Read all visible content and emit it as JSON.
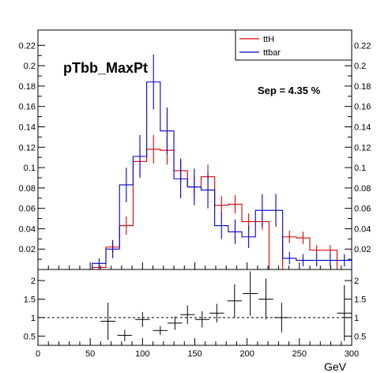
{
  "chart_data": [
    {
      "type": "histogram",
      "title": "pTbb_MaxPt",
      "annotation": "Sep = 4.35 %",
      "xlim": [
        0,
        300
      ],
      "ylim": [
        0,
        0.235
      ],
      "bin_edges": [
        0,
        13,
        26,
        39,
        52,
        65,
        78,
        91,
        104,
        117,
        130,
        143,
        156,
        169,
        182,
        195,
        208,
        221,
        234,
        247,
        260,
        273,
        286,
        300
      ],
      "y_ticks": [
        "0.02",
        "0.04",
        "0.06",
        "0.08",
        "0.1",
        "0.12",
        "0.14",
        "0.16",
        "0.18",
        "0.2",
        "0.22"
      ],
      "legend": {
        "placement": "top-right",
        "entries": [
          "ttH",
          "ttbar"
        ]
      },
      "series": [
        {
          "name": "ttH",
          "color": "#dd0000",
          "values": [
            0,
            0,
            0,
            0,
            0.002,
            0.022,
            0.043,
            0.106,
            0.118,
            0.117,
            0.097,
            0.081,
            0.091,
            0.063,
            0.064,
            0.047,
            0.047,
            0,
            0.032,
            0.031,
            0.019,
            0.019,
            0
          ],
          "errors": [
            0,
            0,
            0,
            0,
            0.003,
            0.006,
            0.009,
            0.013,
            0.014,
            0.014,
            0.012,
            0.011,
            0.012,
            0.009,
            0.009,
            0.008,
            0.008,
            0,
            0.006,
            0.006,
            0.005,
            0.005,
            0
          ]
        },
        {
          "name": "ttbar",
          "color": "#0000cc",
          "values": [
            0,
            0,
            0,
            0,
            0.006,
            0.02,
            0.083,
            0.111,
            0.184,
            0.136,
            0.089,
            0.081,
            0.078,
            0.043,
            0.037,
            0.032,
            0.058,
            0.058,
            0.011,
            0.009,
            0.009,
            0.009,
            0.009
          ],
          "errors": [
            0,
            0,
            0,
            0,
            0.005,
            0.009,
            0.017,
            0.021,
            0.027,
            0.023,
            0.019,
            0.018,
            0.018,
            0.013,
            0.012,
            0.011,
            0.016,
            0.016,
            0.006,
            0.006,
            0.006,
            0.006,
            0.006
          ]
        }
      ]
    },
    {
      "type": "ratio",
      "xlabel": "GeV",
      "xlim": [
        0,
        300
      ],
      "ylim": [
        0.25,
        2.3
      ],
      "x_ticks": [
        "0",
        "50",
        "100",
        "150",
        "200",
        "250",
        "300"
      ],
      "y_ticks": [
        "0.5",
        "1",
        "1.5",
        "2"
      ],
      "reference_line": 1,
      "points": [
        {
          "x": 67,
          "y": 0.9,
          "xerr": 7,
          "yerr": 0.5
        },
        {
          "x": 83,
          "y": 0.52,
          "xerr": 7,
          "yerr": 0.15
        },
        {
          "x": 100,
          "y": 0.95,
          "xerr": 7,
          "yerr": 0.2
        },
        {
          "x": 117,
          "y": 0.65,
          "xerr": 7,
          "yerr": 0.12
        },
        {
          "x": 131,
          "y": 0.85,
          "xerr": 7,
          "yerr": 0.18
        },
        {
          "x": 143,
          "y": 1.08,
          "xerr": 7,
          "yerr": 0.25
        },
        {
          "x": 157,
          "y": 0.95,
          "xerr": 7,
          "yerr": 0.22
        },
        {
          "x": 171,
          "y": 1.12,
          "xerr": 7,
          "yerr": 0.25
        },
        {
          "x": 188,
          "y": 1.45,
          "xerr": 7,
          "yerr": 0.45
        },
        {
          "x": 203,
          "y": 1.65,
          "xerr": 7,
          "yerr": 0.6
        },
        {
          "x": 218,
          "y": 1.5,
          "xerr": 7,
          "yerr": 0.55
        },
        {
          "x": 233,
          "y": 1.0,
          "xerr": 7,
          "yerr": 0.4
        },
        {
          "x": 293,
          "y": 1.12,
          "xerr": 7,
          "yerr": 0.75
        }
      ]
    }
  ]
}
